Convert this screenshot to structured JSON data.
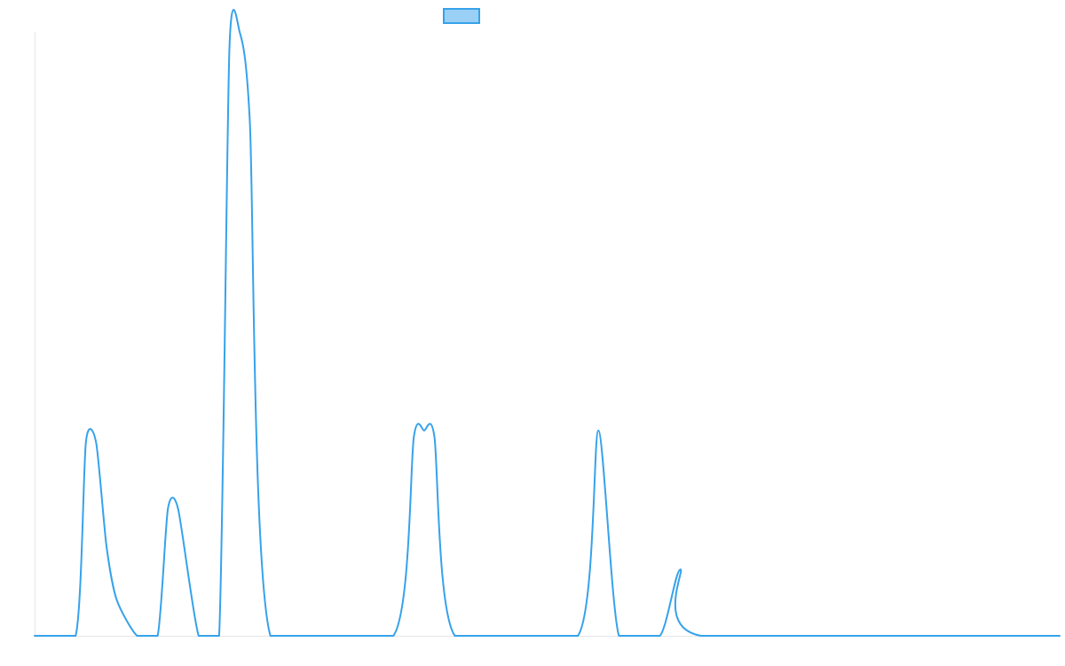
{
  "chart_data": {
    "type": "line",
    "title": "",
    "xlabel": "",
    "ylabel": "",
    "grid": false,
    "legend": "top-center",
    "xlim": [
      0,
      100
    ],
    "ylim": [
      0,
      100
    ],
    "series": [
      {
        "name": "",
        "stroke": "#36a2eb",
        "fill": "#9ad0f5",
        "points": [
          [
            0,
            0
          ],
          [
            4,
            0
          ],
          [
            5,
            32
          ],
          [
            6,
            32
          ],
          [
            7,
            15
          ],
          [
            8,
            6
          ],
          [
            10,
            0
          ],
          [
            12,
            0
          ],
          [
            13,
            21
          ],
          [
            14,
            21
          ],
          [
            16,
            0
          ],
          [
            18,
            0
          ],
          [
            19,
            97
          ],
          [
            20,
            100
          ],
          [
            21,
            85
          ],
          [
            23,
            0
          ],
          [
            35,
            0
          ],
          [
            37,
            33
          ],
          [
            38,
            34
          ],
          [
            39,
            33
          ],
          [
            41,
            0
          ],
          [
            53,
            0
          ],
          [
            55,
            34
          ],
          [
            57,
            0
          ],
          [
            61,
            0
          ],
          [
            63,
            11
          ],
          [
            65,
            0
          ],
          [
            100,
            0
          ]
        ]
      }
    ]
  }
}
